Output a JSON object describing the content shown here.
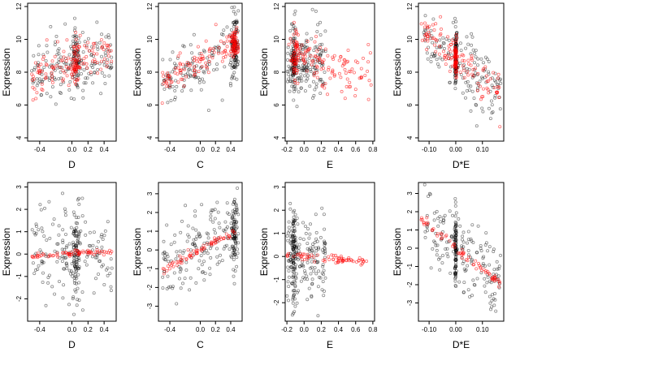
{
  "figure": {
    "layout": "2x4 grid of scatter plots",
    "colors": {
      "black_points": "#000000",
      "red_points": "#ff0000",
      "frame": "#000000"
    }
  },
  "chart_data": [
    {
      "type": "scatter",
      "xlabel": "D",
      "ylabel": "Expression",
      "xlim": [
        -0.55,
        0.55
      ],
      "ylim": [
        3.8,
        12.2
      ],
      "xticks": [
        -0.4,
        0.0,
        0.2,
        0.4
      ],
      "xtick_labels": [
        "-0.4",
        "0.0",
        "0.2",
        "0.4"
      ],
      "yticks": [
        4,
        6,
        8,
        10,
        12
      ],
      "ytick_labels": [
        "4",
        "6",
        "8",
        "10",
        "12"
      ],
      "series": [
        {
          "color": "#000000",
          "kind": "black",
          "pattern": "band",
          "band": {
            "x": [
              -0.5,
              0.5
            ],
            "center": [
              8.0,
              9.2
            ],
            "spread": 1.8,
            "xcluster": [
              0.05,
              0.12
            ],
            "n": 220
          }
        },
        {
          "color": "#ff0000",
          "kind": "red",
          "pattern": "band",
          "band": {
            "x": [
              -0.5,
              0.5
            ],
            "center": [
              7.8,
              9.3
            ],
            "spread": 1.3,
            "xcluster": [
              0.05,
              0.1
            ],
            "n": 160
          }
        }
      ]
    },
    {
      "type": "scatter",
      "xlabel": "C",
      "ylabel": "Expression",
      "xlim": [
        -0.55,
        0.55
      ],
      "ylim": [
        3.8,
        12.2
      ],
      "xticks": [
        -0.4,
        0.0,
        0.2,
        0.4
      ],
      "xtick_labels": [
        "-0.4",
        "0.0",
        "0.2",
        "0.4"
      ],
      "yticks": [
        4,
        6,
        8,
        10,
        12
      ],
      "ytick_labels": [
        "4",
        "6",
        "8",
        "10",
        "12"
      ],
      "series": [
        {
          "color": "#000000",
          "kind": "black",
          "pattern": "band",
          "band": {
            "x": [
              -0.5,
              0.5
            ],
            "center": [
              7.3,
              9.6
            ],
            "spread": 1.6,
            "xcluster": [
              0.45,
              0.1
            ],
            "n": 220
          }
        },
        {
          "color": "#ff0000",
          "kind": "red",
          "pattern": "band",
          "band": {
            "x": [
              -0.5,
              0.5
            ],
            "center": [
              7.6,
              9.8
            ],
            "spread": 0.9,
            "xcluster": [
              0.45,
              0.1
            ],
            "n": 160
          }
        }
      ]
    },
    {
      "type": "scatter",
      "xlabel": "E",
      "ylabel": "Expression",
      "xlim": [
        -0.22,
        0.82
      ],
      "ylim": [
        3.8,
        12.2
      ],
      "xticks": [
        -0.2,
        0.0,
        0.2,
        0.4,
        0.6,
        0.8
      ],
      "xtick_labels": [
        "-0.2",
        "0.0",
        "0.2",
        "0.4",
        "0.6",
        "0.8"
      ],
      "yticks": [
        4,
        6,
        8,
        10,
        12
      ],
      "ytick_labels": [
        "4",
        "6",
        "8",
        "10",
        "12"
      ],
      "series": [
        {
          "color": "#000000",
          "kind": "black",
          "pattern": "cluster",
          "cluster": {
            "x": [
              -0.2,
              0.25
            ],
            "center": [
              8.6,
              8.6
            ],
            "spread": 1.9,
            "xcluster": [
              -0.12,
              0.05
            ],
            "n": 240
          }
        },
        {
          "color": "#ff0000",
          "kind": "red",
          "pattern": "cluster",
          "cluster": {
            "x": [
              -0.18,
              0.78
            ],
            "center": [
              9.0,
              7.6
            ],
            "spread": 1.3,
            "xcluster": [
              -0.1,
              0.06
            ],
            "n": 170
          }
        }
      ]
    },
    {
      "type": "scatter",
      "xlabel": "D*E",
      "ylabel": "Expression",
      "xlim": [
        -0.14,
        0.18
      ],
      "ylim": [
        3.8,
        12.2
      ],
      "xticks": [
        -0.1,
        0.0,
        0.1
      ],
      "xtick_labels": [
        "-0.10",
        "0.00",
        "0.10"
      ],
      "yticks": [
        4,
        6,
        8,
        10,
        12
      ],
      "ytick_labels": [
        "4",
        "6",
        "8",
        "10",
        "12"
      ],
      "series": [
        {
          "color": "#000000",
          "kind": "black",
          "pattern": "band",
          "band": {
            "x": [
              -0.12,
              0.17
            ],
            "center": [
              10.0,
              6.8
            ],
            "spread": 1.8,
            "xcluster": [
              0.0,
              0.008
            ],
            "n": 240
          }
        },
        {
          "color": "#ff0000",
          "kind": "red",
          "pattern": "band",
          "band": {
            "x": [
              -0.13,
              0.17
            ],
            "center": [
              10.8,
              6.4
            ],
            "spread": 1.1,
            "xcluster": [
              0.0,
              0.008
            ],
            "n": 170
          }
        }
      ]
    },
    {
      "type": "scatter",
      "xlabel": "D",
      "ylabel": "Expression",
      "xlim": [
        -0.55,
        0.55
      ],
      "ylim": [
        -3.0,
        3.2
      ],
      "xticks": [
        -0.4,
        0.0,
        0.2,
        0.4
      ],
      "xtick_labels": [
        "-0.4",
        "0.0",
        "0.2",
        "0.4"
      ],
      "yticks": [
        -2,
        -1,
        0,
        1,
        2,
        3
      ],
      "ytick_labels": [
        "-2",
        "-1",
        "0",
        "1",
        "2",
        "3"
      ],
      "series": [
        {
          "color": "#000000",
          "kind": "black",
          "pattern": "band",
          "band": {
            "x": [
              -0.5,
              0.5
            ],
            "center": [
              0.0,
              0.0
            ],
            "spread": 1.9,
            "xcluster": [
              0.05,
              0.1
            ],
            "n": 240
          }
        },
        {
          "color": "#ff0000",
          "kind": "red",
          "pattern": "line",
          "line": {
            "x": [
              -0.5,
              0.5
            ],
            "y": [
              -0.05,
              0.1
            ],
            "jitter": 0.06,
            "n": 70
          }
        }
      ]
    },
    {
      "type": "scatter",
      "xlabel": "C",
      "ylabel": "Expression",
      "xlim": [
        -0.55,
        0.55
      ],
      "ylim": [
        -3.8,
        3.6
      ],
      "xticks": [
        -0.4,
        0.0,
        0.2,
        0.4
      ],
      "xtick_labels": [
        "-0.4",
        "0.0",
        "0.2",
        "0.4"
      ],
      "yticks": [
        -3,
        -2,
        -1,
        0,
        1,
        2,
        3
      ],
      "ytick_labels": [
        "-3",
        "-2",
        "-1",
        "0",
        "1",
        "2",
        "3"
      ],
      "series": [
        {
          "color": "#000000",
          "kind": "black",
          "pattern": "band",
          "band": {
            "x": [
              -0.5,
              0.5
            ],
            "center": [
              -1.0,
              1.1
            ],
            "spread": 1.8,
            "xcluster": [
              0.45,
              0.1
            ],
            "n": 240
          }
        },
        {
          "color": "#ff0000",
          "kind": "red",
          "pattern": "line",
          "line": {
            "x": [
              -0.5,
              0.5
            ],
            "y": [
              -1.1,
              1.1
            ],
            "jitter": 0.12,
            "n": 70
          }
        }
      ]
    },
    {
      "type": "scatter",
      "xlabel": "E",
      "ylabel": "Expression",
      "xlim": [
        -0.22,
        0.82
      ],
      "ylim": [
        -2.8,
        3.2
      ],
      "xticks": [
        -0.2,
        0.0,
        0.2,
        0.4,
        0.6,
        0.8
      ],
      "xtick_labels": [
        "-0.2",
        "0.0",
        "0.2",
        "0.4",
        "0.6",
        "0.8"
      ],
      "yticks": [
        -2,
        -1,
        0,
        1,
        2,
        3
      ],
      "ytick_labels": [
        "-2",
        "-1",
        "0",
        "1",
        "2",
        "3"
      ],
      "series": [
        {
          "color": "#000000",
          "kind": "black",
          "pattern": "cluster",
          "cluster": {
            "x": [
              -0.2,
              0.25
            ],
            "center": [
              0.0,
              0.0
            ],
            "spread": 1.9,
            "xcluster": [
              -0.12,
              0.05
            ],
            "n": 250
          }
        },
        {
          "color": "#ff0000",
          "kind": "red",
          "pattern": "line",
          "line": {
            "x": [
              -0.2,
              0.75
            ],
            "y": [
              0.1,
              -0.25
            ],
            "jitter": 0.08,
            "n": 70
          }
        }
      ]
    },
    {
      "type": "scatter",
      "xlabel": "D*E",
      "ylabel": "Expression",
      "xlim": [
        -0.14,
        0.18
      ],
      "ylim": [
        -4.0,
        3.6
      ],
      "xticks": [
        -0.1,
        0.0,
        0.1
      ],
      "xtick_labels": [
        "-0.10",
        "0.00",
        "0.10"
      ],
      "yticks": [
        -3,
        -2,
        -1,
        0,
        1,
        2,
        3
      ],
      "ytick_labels": [
        "-3",
        "-2",
        "-1",
        "0",
        "1",
        "2",
        "3"
      ],
      "series": [
        {
          "color": "#000000",
          "kind": "black",
          "pattern": "band",
          "band": {
            "x": [
              -0.12,
              0.17
            ],
            "center": [
              1.2,
              -1.8
            ],
            "spread": 1.9,
            "xcluster": [
              0.0,
              0.008
            ],
            "n": 250
          }
        },
        {
          "color": "#ff0000",
          "kind": "red",
          "pattern": "line",
          "line": {
            "x": [
              -0.13,
              0.17
            ],
            "y": [
              1.6,
              -2.0
            ],
            "jitter": 0.12,
            "n": 70
          }
        }
      ]
    }
  ]
}
